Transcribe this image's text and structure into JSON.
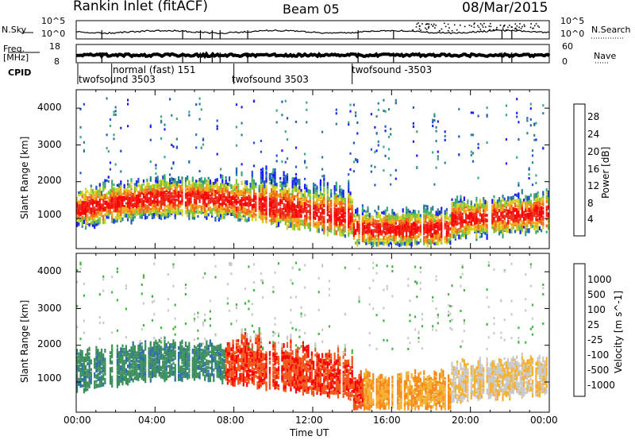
{
  "header": {
    "station": "Rankin Inlet (fitACF)",
    "beam": "Beam 05",
    "date": "08/Mar/2015"
  },
  "strip": {
    "nsky_label": "N.Sky",
    "nsearch_label": "N.Search",
    "freq_label": "Freq.",
    "freq_unit": "[MHz]",
    "nave_label": "Nave",
    "cpid_label": "CPID",
    "nsky_ticks": [
      "10^5",
      "10^0"
    ],
    "nsearch_ticks": [
      "10^5",
      "10^0"
    ],
    "freq_ticks": [
      "18",
      "8"
    ],
    "nave_ticks": [
      "60",
      "0"
    ]
  },
  "cpid_modes": [
    {
      "label": "twofsound 3503",
      "start_hour": 0.0
    },
    {
      "label": "normal (fast) 151",
      "start_hour": 1.8
    },
    {
      "label": "twofsound 3503",
      "start_hour": 8.0
    },
    {
      "label": "twofsound -3503",
      "start_hour": 14.0
    }
  ],
  "chart_data": [
    {
      "type": "heatmap",
      "title": "",
      "xlabel": "Time UT",
      "ylabel": "Slant Range [km]",
      "x_ticks": [
        "00:00",
        "04:00",
        "08:00",
        "12:00",
        "16:00",
        "20:00",
        "00:00"
      ],
      "xlim": [
        0,
        24
      ],
      "y_ticks": [
        1000,
        2000,
        3000,
        4000
      ],
      "ylim": [
        180,
        4500
      ],
      "colorbar": {
        "label": "Power [dB]",
        "ticks": [
          "4",
          "8",
          "12",
          "16",
          "20",
          "24",
          "28"
        ],
        "range": [
          0,
          32
        ],
        "colors": [
          "#1a1aff",
          "#2255cc",
          "#2d7f8f",
          "#3aa87a",
          "#7cc23a",
          "#d4d21e",
          "#f5a418",
          "#f2661a",
          "#ee2a1a",
          "#ff0000"
        ]
      }
    },
    {
      "type": "heatmap",
      "title": "",
      "xlabel": "Time UT",
      "ylabel": "Slant Range [km]",
      "x_ticks": [
        "00:00",
        "04:00",
        "08:00",
        "12:00",
        "16:00",
        "20:00",
        "00:00"
      ],
      "xlim": [
        0,
        24
      ],
      "y_ticks": [
        1000,
        2000,
        3000,
        4000
      ],
      "ylim": [
        180,
        4500
      ],
      "colorbar": {
        "label": "Velocity [m s^-1]",
        "ticks": [
          "1000",
          "500",
          "100",
          "25",
          "-25",
          "-100",
          "-500",
          "-1000"
        ],
        "range": [
          -1200,
          1200
        ],
        "colors": [
          "#ff0000",
          "#f2551a",
          "#f58a1a",
          "#f5b030",
          "#c9c9c9",
          "#44b444",
          "#3c8f5c",
          "#2f6fa8",
          "#1a3cc8"
        ]
      }
    }
  ]
}
